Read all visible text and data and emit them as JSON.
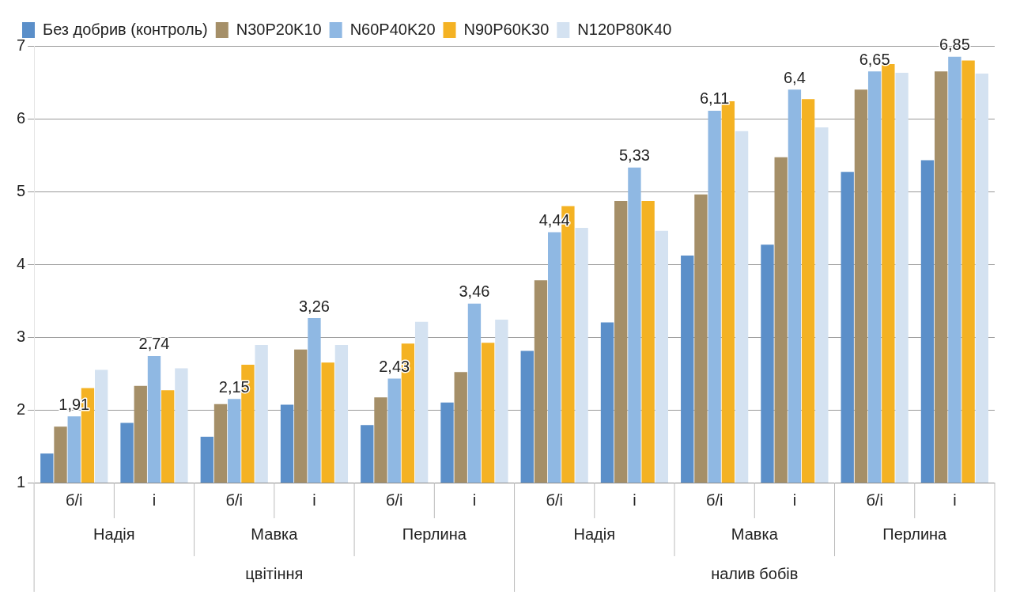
{
  "chart_data": {
    "type": "bar",
    "categories": [
      "б/і",
      "і",
      "б/і",
      "і",
      "б/і",
      "і",
      "б/і",
      "і",
      "б/і",
      "і",
      "б/і",
      "і"
    ],
    "series": [
      {
        "name": "Без добрив (контроль)",
        "color": "#5b8fc9",
        "values": [
          1.4,
          1.82,
          1.63,
          2.07,
          1.79,
          2.1,
          2.81,
          3.2,
          4.12,
          4.27,
          5.27,
          5.43
        ]
      },
      {
        "name": "N30P20K10",
        "color": "#a58f68",
        "values": [
          1.77,
          2.33,
          2.08,
          2.83,
          2.17,
          2.52,
          3.78,
          4.87,
          4.96,
          5.47,
          6.4,
          6.65
        ]
      },
      {
        "name": "N60P40K20",
        "color": "#8fb8e3",
        "values": [
          1.91,
          2.74,
          2.15,
          3.26,
          2.43,
          3.46,
          4.44,
          5.33,
          6.11,
          6.4,
          6.65,
          6.85
        ],
        "value_labels": [
          "1,91",
          "2,74",
          "2,15",
          "3,26",
          "2,43",
          "3,46",
          "4,44",
          "5,33",
          "6,11",
          "6,4",
          "6,65",
          "6,85"
        ]
      },
      {
        "name": "N90P60K30",
        "color": "#f4b223",
        "values": [
          2.3,
          2.27,
          2.62,
          2.65,
          2.91,
          2.92,
          4.8,
          4.87,
          6.24,
          6.27,
          6.75,
          6.8
        ]
      },
      {
        "name": "N120P80K40",
        "color": "#d4e2f1",
        "values": [
          2.55,
          2.57,
          2.89,
          2.89,
          3.21,
          3.24,
          4.5,
          4.46,
          5.83,
          5.88,
          6.63,
          6.62
        ]
      }
    ],
    "annotations": [
      "Надія",
      "Мавка",
      "Перлина",
      "Надія",
      "Мавка",
      "Перлина",
      "цвітіння",
      "налив бобів"
    ],
    "ylim": [
      1,
      7
    ],
    "yticks": [
      1,
      2,
      3,
      4,
      5,
      6,
      7
    ],
    "grid": "y",
    "legend": "top left"
  }
}
